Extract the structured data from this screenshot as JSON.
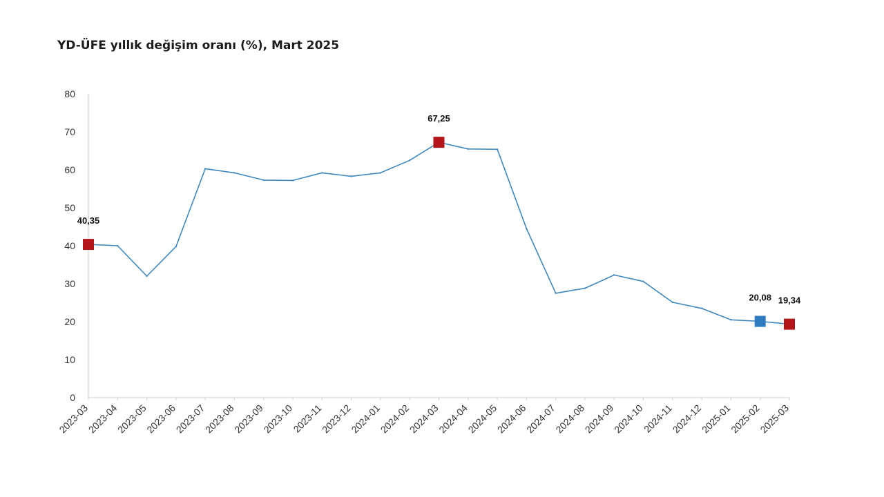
{
  "chart_data": {
    "type": "line",
    "title": "YD-ÜFE yıllık değişim oranı (%), Mart 2025",
    "xlabel": "",
    "ylabel": "",
    "ylim": [
      0,
      80
    ],
    "yticks": [
      0,
      10,
      20,
      30,
      40,
      50,
      60,
      70,
      80
    ],
    "grid": false,
    "categories": [
      "2023-03",
      "2023-04",
      "2023-05",
      "2023-06",
      "2023-07",
      "2023-08",
      "2023-09",
      "2023-10",
      "2023-11",
      "2023-12",
      "2024-01",
      "2024-02",
      "2024-03",
      "2024-04",
      "2024-05",
      "2024-06",
      "2024-07",
      "2024-08",
      "2024-09",
      "2024-10",
      "2024-11",
      "2024-12",
      "2025-01",
      "2025-02",
      "2025-03"
    ],
    "series": [
      {
        "values": [
          40.35,
          40.0,
          32.0,
          39.8,
          60.3,
          59.2,
          57.3,
          57.2,
          59.2,
          58.3,
          59.2,
          62.5,
          67.25,
          65.5,
          65.4,
          44.5,
          27.5,
          28.8,
          32.3,
          30.6,
          25.1,
          23.5,
          20.5,
          20.08,
          19.34
        ],
        "color": "#3e88bf"
      }
    ],
    "highlights": [
      {
        "category": "2023-03",
        "value": 40.35,
        "label": "40,35",
        "color": "#b3151b"
      },
      {
        "category": "2024-03",
        "value": 67.25,
        "label": "67,25",
        "color": "#b3151b"
      },
      {
        "category": "2025-02",
        "value": 20.08,
        "label": "20,08",
        "color": "#2e7bbf"
      },
      {
        "category": "2025-03",
        "value": 19.34,
        "label": "19,34",
        "color": "#b3151b"
      }
    ]
  }
}
